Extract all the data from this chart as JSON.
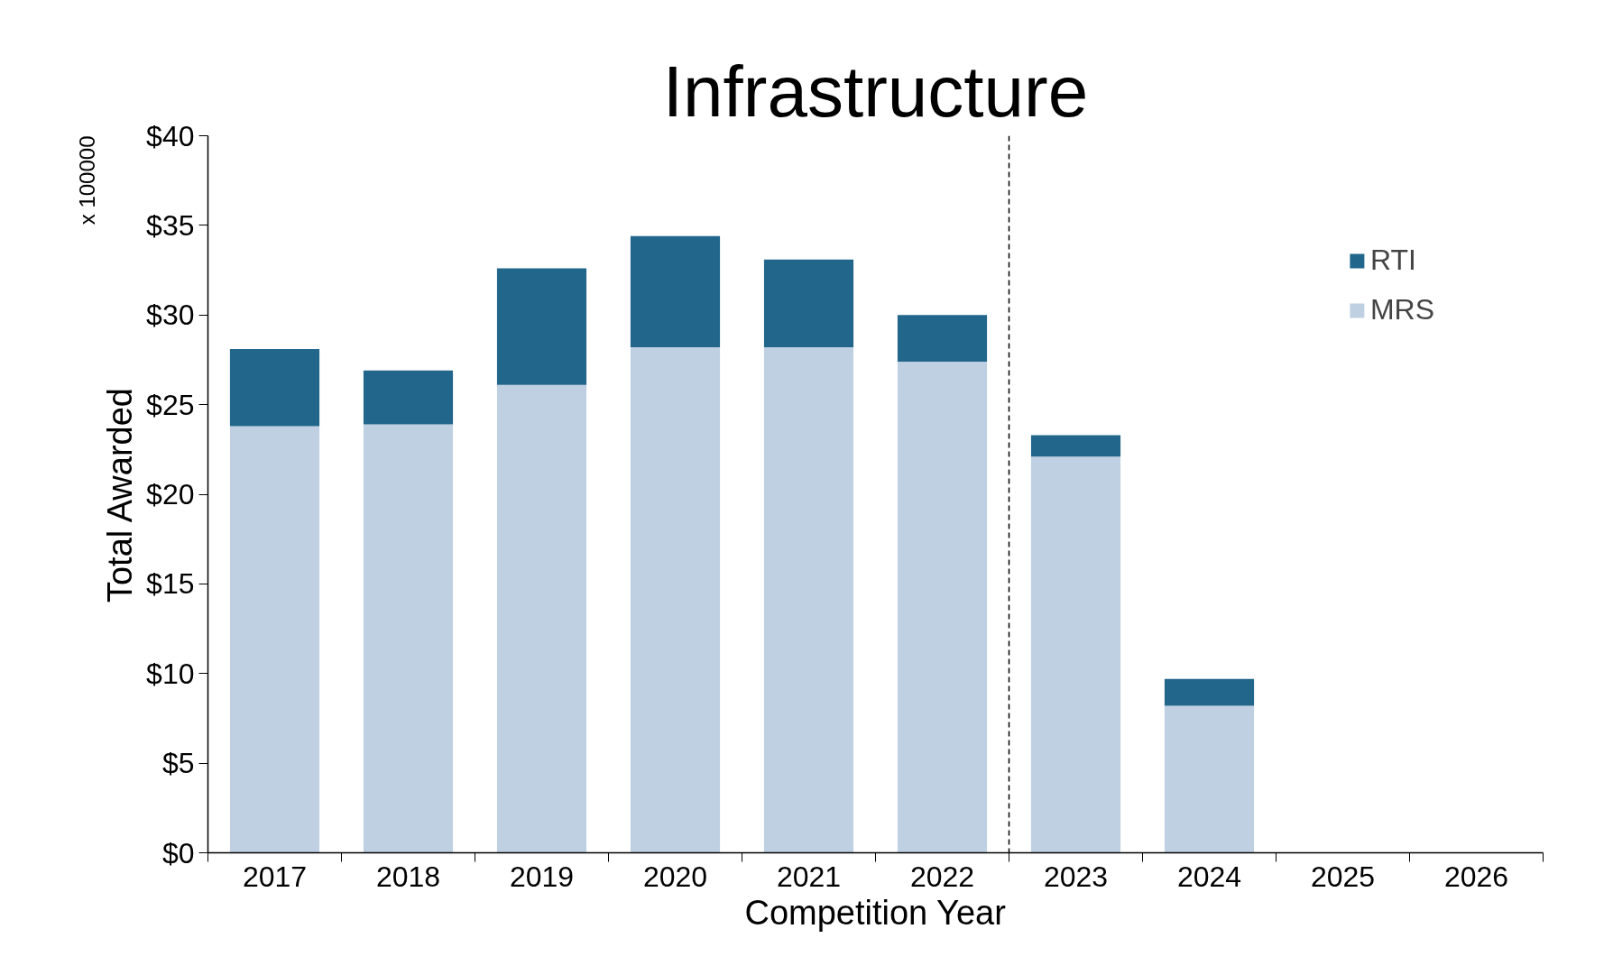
{
  "chart_data": {
    "type": "bar",
    "title": "Infrastructure",
    "xlabel": "Competition Year",
    "ylabel": "Total Awarded",
    "annotations": [
      "x 100000"
    ],
    "categories": [
      "2017",
      "2018",
      "2019",
      "2020",
      "2021",
      "2022",
      "2023",
      "2024",
      "2025",
      "2026"
    ],
    "stacked": true,
    "series": [
      {
        "name": "MRS",
        "color": "#bfd0e2",
        "values": [
          23.8,
          23.9,
          26.1,
          28.2,
          28.2,
          27.4,
          22.1,
          8.2,
          null,
          null
        ]
      },
      {
        "name": "RTI",
        "color": "#23668c",
        "values": [
          4.3,
          3.0,
          6.5,
          6.2,
          4.9,
          2.6,
          1.2,
          1.5,
          null,
          null
        ]
      }
    ],
    "ylim": [
      0,
      40
    ],
    "yticks": [
      {
        "value": 0,
        "label": "$0"
      },
      {
        "value": 5,
        "label": "$5"
      },
      {
        "value": 10,
        "label": "$10"
      },
      {
        "value": 15,
        "label": "$15"
      },
      {
        "value": 20,
        "label": "$20"
      },
      {
        "value": 25,
        "label": "$25"
      },
      {
        "value": 30,
        "label": "$30"
      },
      {
        "value": 35,
        "label": "$35"
      },
      {
        "value": 40,
        "label": "$40"
      }
    ],
    "grid": false,
    "legend": "top right"
  }
}
